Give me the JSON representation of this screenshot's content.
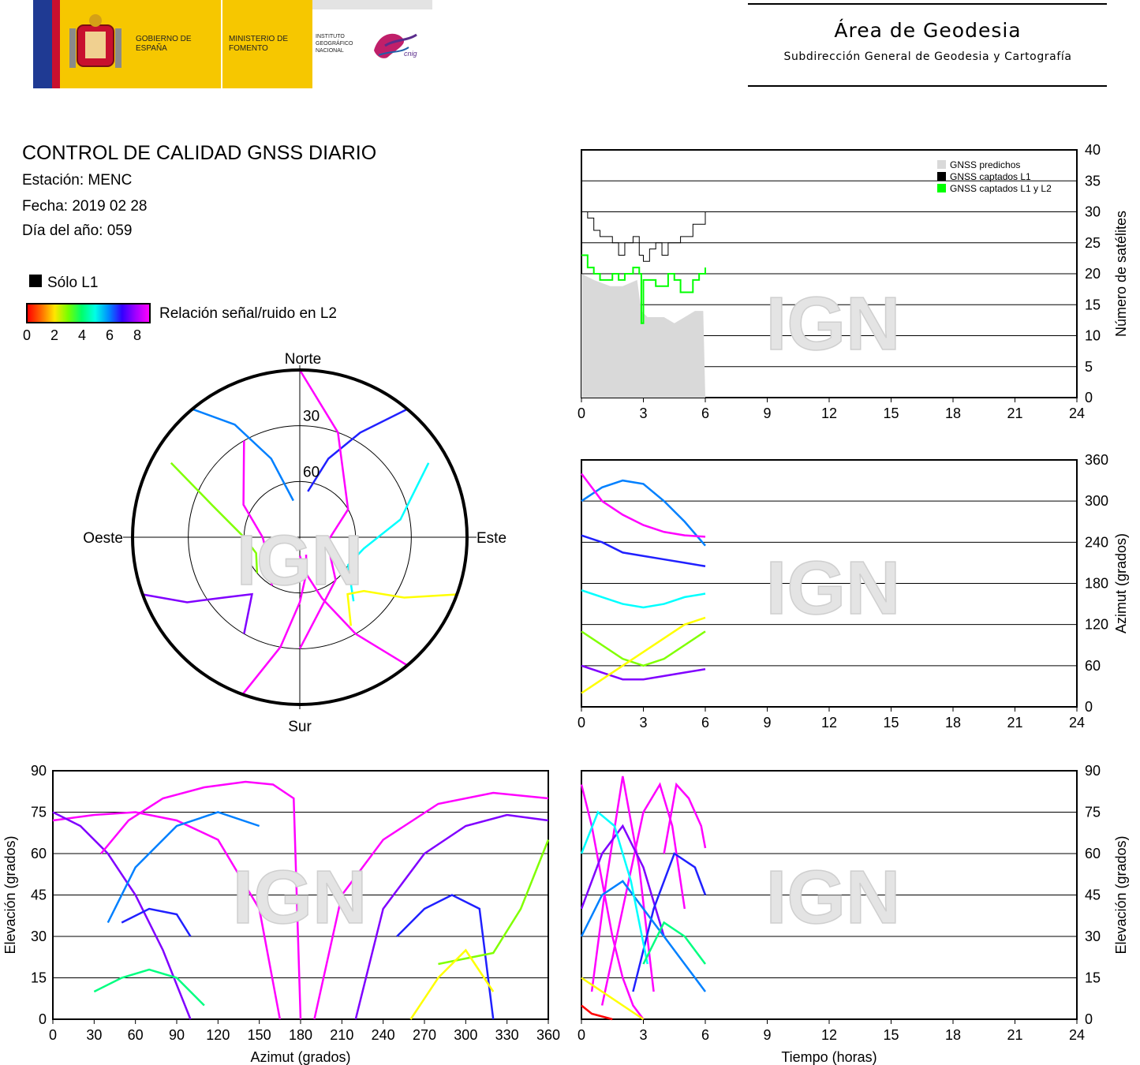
{
  "header": {
    "logos": {
      "gobierno": "GOBIERNO DE ESPAÑA",
      "ministerio": "MINISTERIO DE FOMENTO",
      "instituto": "INSTITUTO GEOGRÁFICO NACIONAL",
      "cnig": "cnig"
    },
    "area_title": "Área de Geodesia",
    "area_subtitle": "Subdirección General de Geodesia y Cartografía"
  },
  "report": {
    "title": "CONTROL DE CALIDAD GNSS DIARIO",
    "station": "Estación: MENC",
    "date": "Fecha: 2019 02 28",
    "doy": "Día del año: 059"
  },
  "legend": {
    "solo_l1": "Sólo L1",
    "snr_label": "Relación señal/ruido en L2",
    "snr_ticks": [
      "0",
      "2",
      "4",
      "6",
      "8"
    ]
  },
  "watermark": "IGN",
  "colors": {
    "predicted": "#d9d9d9",
    "l1": "#000000",
    "l1l2": "#00ff00",
    "snr_scale": [
      "#ff0000",
      "#ff8000",
      "#ffff00",
      "#80ff00",
      "#00ff80",
      "#00ffff",
      "#0080ff",
      "#2020ff",
      "#8000ff",
      "#ff00ff"
    ]
  },
  "chart_data": [
    {
      "type": "line",
      "id": "satellites",
      "xlabel": "",
      "ylabel": "Número de satélites",
      "xlim": [
        0,
        24
      ],
      "ylim": [
        0,
        40
      ],
      "xticks": [
        "0",
        "3",
        "6",
        "9",
        "12",
        "15",
        "18",
        "21",
        "24"
      ],
      "yticks": [
        "0",
        "5",
        "10",
        "15",
        "20",
        "25",
        "30",
        "35",
        "40"
      ],
      "legend": [
        "GNSS predichos",
        "GNSS captados L1",
        "GNSS captados L1 y L2"
      ],
      "legend_position": "top-right",
      "series": [
        {
          "name": "GNSS predichos",
          "x": [
            0,
            0.6,
            1.4,
            2.0,
            2.7,
            2.9,
            3.2,
            3.6,
            4.0,
            4.5,
            5.0,
            5.5,
            5.9,
            6.0
          ],
          "y": [
            20,
            19,
            18,
            18,
            19,
            14,
            13,
            13,
            13,
            12,
            13,
            14,
            14,
            0
          ]
        },
        {
          "name": "GNSS captados L1",
          "x": [
            0,
            0.3,
            0.6,
            0.9,
            1.2,
            1.5,
            1.8,
            2.1,
            2.5,
            2.8,
            3.0,
            3.3,
            3.6,
            3.9,
            4.2,
            4.5,
            4.8,
            5.1,
            5.4,
            5.7,
            6.0
          ],
          "y": [
            30,
            29,
            27,
            26,
            26,
            25,
            23,
            25,
            26,
            23,
            22,
            24,
            25,
            23,
            25,
            25,
            26,
            26,
            28,
            28,
            30
          ]
        },
        {
          "name": "GNSS captados L1 y L2",
          "x": [
            0,
            0.3,
            0.6,
            0.9,
            1.2,
            1.5,
            1.8,
            2.1,
            2.5,
            2.8,
            2.9,
            3.0,
            3.3,
            3.6,
            3.9,
            4.2,
            4.5,
            4.8,
            5.1,
            5.4,
            5.7,
            6.0
          ],
          "y": [
            23,
            21,
            20,
            19,
            19,
            20,
            19,
            20,
            21,
            20,
            12,
            19,
            19,
            18,
            18,
            20,
            19,
            17,
            17,
            19,
            20,
            21
          ]
        }
      ]
    },
    {
      "type": "scatter",
      "id": "azimuth_time",
      "xlabel": "",
      "ylabel": "Azimut (grados)",
      "xlim": [
        0,
        24
      ],
      "ylim": [
        0,
        360
      ],
      "xticks": [
        "0",
        "3",
        "6",
        "9",
        "12",
        "15",
        "18",
        "21",
        "24"
      ],
      "yticks": [
        "0",
        "60",
        "120",
        "180",
        "240",
        "300",
        "360"
      ],
      "series": [
        {
          "x": [
            0,
            1,
            2,
            3,
            4,
            5,
            6
          ],
          "y": [
            300,
            320,
            330,
            325,
            300,
            270,
            235
          ],
          "snr": 6
        },
        {
          "x": [
            0,
            1,
            2,
            3,
            4,
            5,
            6
          ],
          "y": [
            60,
            50,
            40,
            40,
            45,
            50,
            55
          ],
          "snr": 8
        },
        {
          "x": [
            0,
            1,
            2,
            3,
            4,
            5,
            6
          ],
          "y": [
            170,
            160,
            150,
            145,
            150,
            160,
            165
          ],
          "snr": 5
        },
        {
          "x": [
            0,
            1,
            2,
            3,
            4,
            5,
            6
          ],
          "y": [
            110,
            90,
            70,
            60,
            70,
            90,
            110
          ],
          "snr": 3
        },
        {
          "x": [
            0,
            1,
            2,
            3,
            4,
            5,
            6
          ],
          "y": [
            250,
            240,
            225,
            220,
            215,
            210,
            205
          ],
          "snr": 7
        },
        {
          "x": [
            0,
            1,
            2,
            3,
            4,
            5,
            6
          ],
          "y": [
            20,
            40,
            60,
            80,
            100,
            120,
            130
          ],
          "snr": 2
        },
        {
          "x": [
            0,
            1,
            2,
            3,
            4,
            5,
            6
          ],
          "y": [
            340,
            300,
            280,
            265,
            255,
            250,
            248
          ],
          "snr": 9
        }
      ]
    },
    {
      "type": "scatter",
      "id": "elevation_azimuth",
      "xlabel": "Azimut (grados)",
      "ylabel": "Elevación (grados)",
      "xlim": [
        0,
        360
      ],
      "ylim": [
        0,
        90
      ],
      "xticks": [
        "0",
        "30",
        "60",
        "90",
        "120",
        "150",
        "180",
        "210",
        "240",
        "270",
        "300",
        "330",
        "360"
      ],
      "yticks": [
        "0",
        "15",
        "30",
        "45",
        "60",
        "75",
        "90"
      ],
      "series": [
        {
          "x": [
            0,
            30,
            60,
            90,
            120,
            150,
            165
          ],
          "y": [
            72,
            74,
            75,
            72,
            65,
            40,
            0
          ],
          "snr": 9
        },
        {
          "x": [
            0,
            20,
            40,
            60,
            80,
            100
          ],
          "y": [
            75,
            70,
            60,
            45,
            25,
            0
          ],
          "snr": 8
        },
        {
          "x": [
            35,
            55,
            80,
            110,
            140,
            160,
            175,
            180
          ],
          "y": [
            60,
            72,
            80,
            84,
            86,
            85,
            80,
            0
          ],
          "snr": 9
        },
        {
          "x": [
            40,
            60,
            90,
            120,
            150
          ],
          "y": [
            35,
            55,
            70,
            75,
            70
          ],
          "snr": 6
        },
        {
          "x": [
            220,
            240,
            270,
            300,
            330,
            360
          ],
          "y": [
            0,
            40,
            60,
            70,
            74,
            72
          ],
          "snr": 8
        },
        {
          "x": [
            190,
            210,
            240,
            280,
            320,
            360
          ],
          "y": [
            0,
            45,
            65,
            78,
            82,
            80
          ],
          "snr": 9
        },
        {
          "x": [
            250,
            270,
            290,
            310,
            320
          ],
          "y": [
            30,
            40,
            45,
            40,
            0
          ],
          "snr": 7
        },
        {
          "x": [
            50,
            70,
            90,
            100
          ],
          "y": [
            35,
            40,
            38,
            30
          ],
          "snr": 7
        },
        {
          "x": [
            30,
            50,
            70,
            90,
            110
          ],
          "y": [
            10,
            15,
            18,
            15,
            5
          ],
          "snr": 4
        },
        {
          "x": [
            280,
            300,
            320,
            340,
            360
          ],
          "y": [
            20,
            22,
            24,
            40,
            65
          ],
          "snr": 3
        },
        {
          "x": [
            260,
            280,
            300,
            320
          ],
          "y": [
            0,
            15,
            25,
            10
          ],
          "snr": 2
        }
      ]
    },
    {
      "type": "line",
      "id": "elevation_time",
      "xlabel": "Tiempo (horas)",
      "ylabel": "Elevación (grados)",
      "xlim": [
        0,
        24
      ],
      "ylim": [
        0,
        90
      ],
      "xticks": [
        "0",
        "3",
        "6",
        "9",
        "12",
        "15",
        "18",
        "21",
        "24"
      ],
      "yticks": [
        "0",
        "15",
        "30",
        "45",
        "60",
        "75",
        "90"
      ],
      "series": [
        {
          "x": [
            0,
            0.5,
            1,
            1.5,
            2,
            2.5,
            3
          ],
          "y": [
            85,
            70,
            50,
            30,
            15,
            5,
            0
          ],
          "snr": 9
        },
        {
          "x": [
            0.5,
            1.2,
            2.0,
            2.8,
            3.5
          ],
          "y": [
            10,
            50,
            88,
            55,
            10
          ],
          "snr": 9
        },
        {
          "x": [
            1,
            2,
            3,
            3.8,
            4.4,
            5
          ],
          "y": [
            5,
            40,
            75,
            85,
            70,
            40
          ],
          "snr": 9
        },
        {
          "x": [
            0,
            1,
            2,
            3,
            4
          ],
          "y": [
            40,
            60,
            70,
            55,
            30
          ],
          "snr": 8
        },
        {
          "x": [
            2.5,
            3.5,
            4.5,
            5.5,
            6
          ],
          "y": [
            10,
            40,
            60,
            55,
            45
          ],
          "snr": 7
        },
        {
          "x": [
            0,
            1,
            2,
            3,
            4,
            5,
            6
          ],
          "y": [
            30,
            45,
            50,
            40,
            30,
            20,
            10
          ],
          "snr": 6
        },
        {
          "x": [
            4,
            4.6,
            5.2,
            5.8,
            6
          ],
          "y": [
            60,
            85,
            80,
            70,
            62
          ],
          "snr": 9
        },
        {
          "x": [
            0,
            0.8,
            1.6,
            2.4,
            3.2
          ],
          "y": [
            60,
            75,
            70,
            50,
            20
          ],
          "snr": 5
        },
        {
          "x": [
            3,
            4,
            5,
            6
          ],
          "y": [
            20,
            35,
            30,
            20
          ],
          "snr": 4
        },
        {
          "x": [
            0,
            1,
            2,
            3
          ],
          "y": [
            15,
            10,
            5,
            0
          ],
          "snr": 2
        },
        {
          "x": [
            0,
            0.5,
            1,
            1.5
          ],
          "y": [
            5,
            2,
            1,
            0
          ],
          "snr": 0
        }
      ]
    },
    {
      "type": "scatter",
      "id": "skyplot",
      "labels": {
        "north": "Norte",
        "south": "Sur",
        "east": "Este",
        "west": "Oeste"
      },
      "ring_labels": [
        "30",
        "60"
      ],
      "series": [
        {
          "az": [
            320,
            330,
            340,
            350
          ],
          "el": [
            0,
            20,
            45,
            70
          ],
          "snr": 6
        },
        {
          "az": [
            40,
            30,
            20,
            10
          ],
          "el": [
            0,
            25,
            45,
            65
          ],
          "snr": 7
        },
        {
          "az": [
            200,
            190,
            180,
            170,
            160
          ],
          "el": [
            0,
            30,
            55,
            70,
            80
          ],
          "snr": 9
        },
        {
          "az": [
            140,
            150,
            160,
            170,
            180
          ],
          "el": [
            0,
            30,
            55,
            70,
            80
          ],
          "snr": 9
        },
        {
          "az": [
            300,
            290,
            270,
            250,
            230
          ],
          "el": [
            10,
            40,
            60,
            65,
            60
          ],
          "snr": 3
        },
        {
          "az": [
            60,
            80,
            100,
            120,
            140
          ],
          "el": [
            10,
            35,
            55,
            60,
            45
          ],
          "snr": 5
        },
        {
          "az": [
            250,
            240,
            230,
            220,
            210
          ],
          "el": [
            0,
            20,
            40,
            50,
            30
          ],
          "snr": 8
        },
        {
          "az": [
            110,
            120,
            130,
            140,
            150
          ],
          "el": [
            0,
            25,
            45,
            50,
            35
          ],
          "snr": 2
        },
        {
          "az": [
            0,
            20,
            60,
            100,
            140,
            180
          ],
          "el": [
            0,
            30,
            60,
            75,
            60,
            30
          ],
          "snr": 9
        },
        {
          "az": [
            330,
            300,
            270,
            240,
            210
          ],
          "el": [
            30,
            55,
            70,
            70,
            60
          ],
          "snr": 9
        }
      ]
    }
  ]
}
